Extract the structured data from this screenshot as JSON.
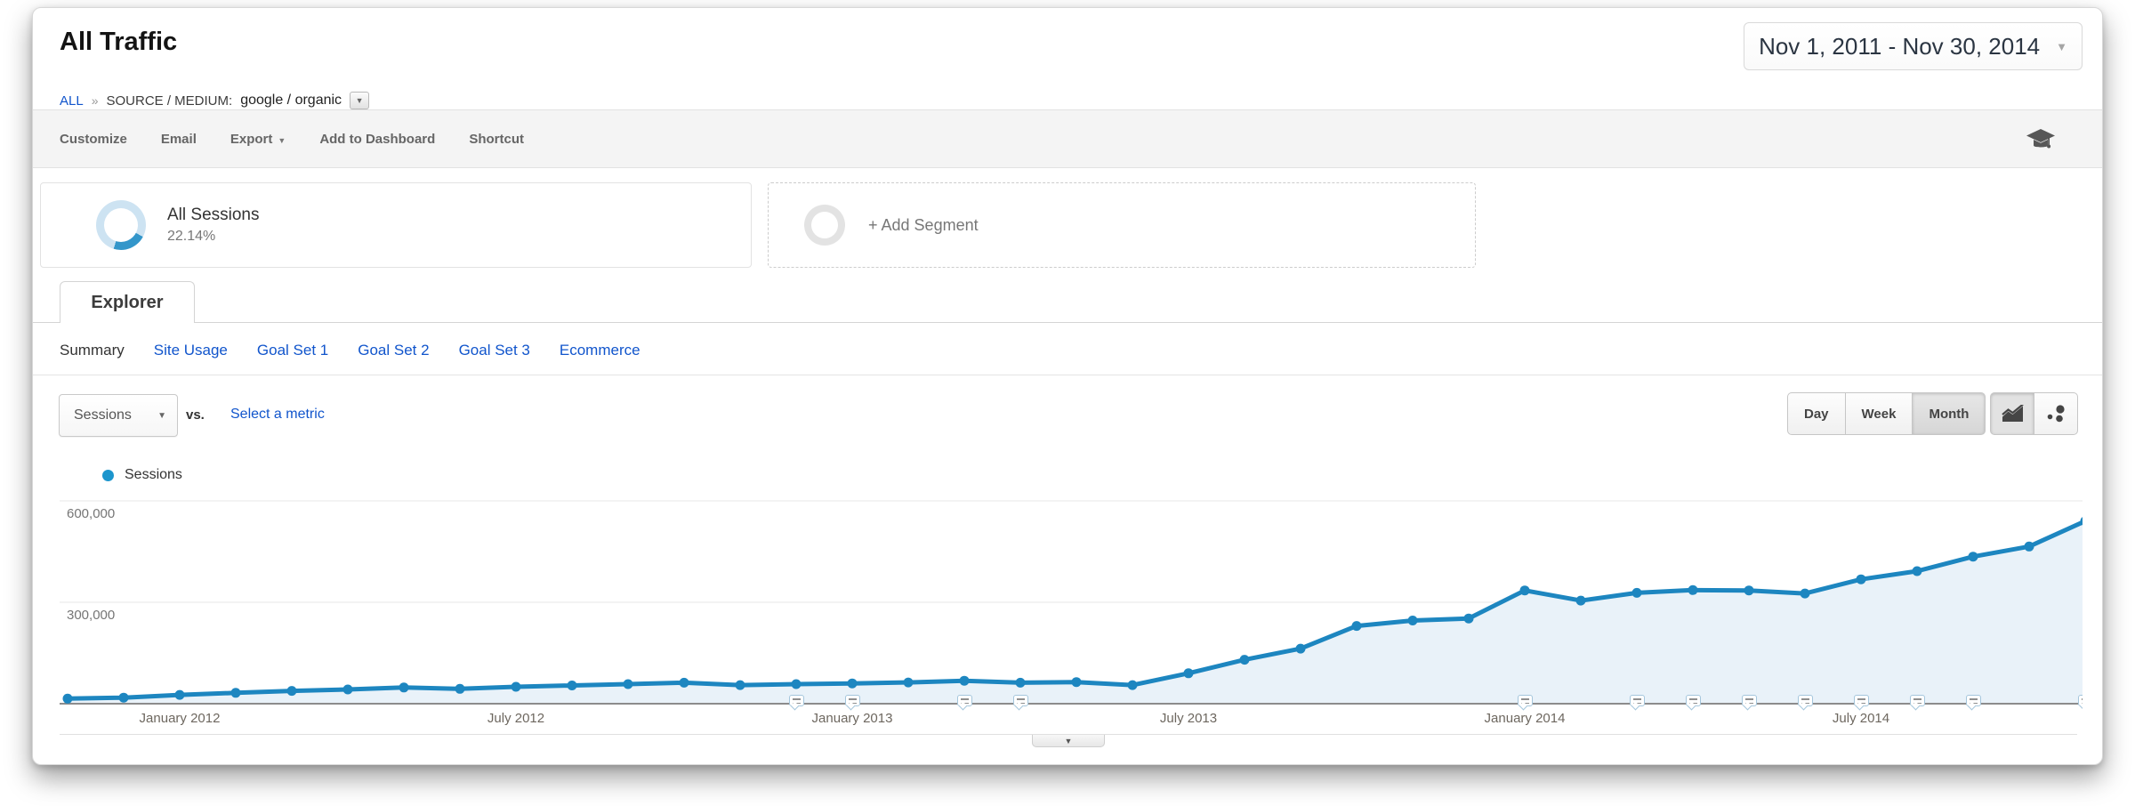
{
  "header": {
    "title": "All Traffic",
    "breadcrumb": {
      "root": "ALL",
      "separator": "»",
      "dimension": "SOURCE / MEDIUM:",
      "value": "google / organic"
    },
    "date_range": "Nov 1, 2011 - Nov 30, 2014"
  },
  "toolbar": {
    "customize": "Customize",
    "email": "Email",
    "export": "Export",
    "add_to_dashboard": "Add to Dashboard",
    "shortcut": "Shortcut"
  },
  "segments": {
    "all_sessions": {
      "label": "All Sessions",
      "percent": "22.14%"
    },
    "add_segment_label": "+ Add Segment"
  },
  "explorer": {
    "tab_label": "Explorer"
  },
  "subtabs": [
    "Summary",
    "Site Usage",
    "Goal Set 1",
    "Goal Set 2",
    "Goal Set 3",
    "Ecommerce"
  ],
  "metric_bar": {
    "metric": "Sessions",
    "vs": "vs.",
    "select_metric": "Select a metric",
    "granularity": [
      "Day",
      "Week",
      "Month"
    ],
    "active_granularity": "Month"
  },
  "legend": {
    "label": "Sessions",
    "dot_color": "#1b95cd"
  },
  "chart_data": {
    "type": "line",
    "title": "Sessions by month",
    "series_name": "Sessions",
    "x": [
      "Nov 2011",
      "Dec 2011",
      "Jan 2012",
      "Feb 2012",
      "Mar 2012",
      "Apr 2012",
      "May 2012",
      "Jun 2012",
      "Jul 2012",
      "Aug 2012",
      "Sep 2012",
      "Oct 2012",
      "Nov 2012",
      "Dec 2012",
      "Jan 2013",
      "Feb 2013",
      "Mar 2013",
      "Apr 2013",
      "May 2013",
      "Jun 2013",
      "Jul 2013",
      "Aug 2013",
      "Sep 2013",
      "Oct 2013",
      "Nov 2013",
      "Dec 2013",
      "Jan 2014",
      "Feb 2014",
      "Mar 2014",
      "Apr 2014",
      "May 2014",
      "Jun 2014",
      "Jul 2014",
      "Aug 2014",
      "Sep 2014",
      "Oct 2014",
      "Nov 2014"
    ],
    "values": [
      15000,
      18000,
      26000,
      32000,
      38000,
      42000,
      48000,
      44000,
      50000,
      54000,
      58000,
      62000,
      55000,
      58000,
      60000,
      63000,
      68000,
      62000,
      64000,
      55000,
      90000,
      130000,
      163000,
      230000,
      246000,
      252000,
      335000,
      305000,
      328000,
      336000,
      335000,
      326000,
      368000,
      392000,
      435000,
      465000,
      540000
    ],
    "ylim": [
      0,
      660000
    ],
    "yticks": [
      {
        "v": 600000,
        "label": "600,000"
      },
      {
        "v": 300000,
        "label": "300,000"
      }
    ],
    "xticks": [
      {
        "i": 2,
        "label": "January 2012"
      },
      {
        "i": 8,
        "label": "July 2012"
      },
      {
        "i": 14,
        "label": "January 2013"
      },
      {
        "i": 20,
        "label": "July 2013"
      },
      {
        "i": 26,
        "label": "January 2014"
      },
      {
        "i": 32,
        "label": "July 2014"
      }
    ],
    "annotation_indices": [
      13,
      14,
      16,
      17,
      26,
      28,
      29,
      30,
      31,
      32,
      33,
      34,
      36
    ],
    "grid": true,
    "legend_position": "top-left",
    "line_color": "#1d86c0",
    "fill_color": "#e9f2f9",
    "point_color": "#1d86c0",
    "axis_color": "#8c8c8c",
    "gridline_color": "#e7e7e7"
  }
}
